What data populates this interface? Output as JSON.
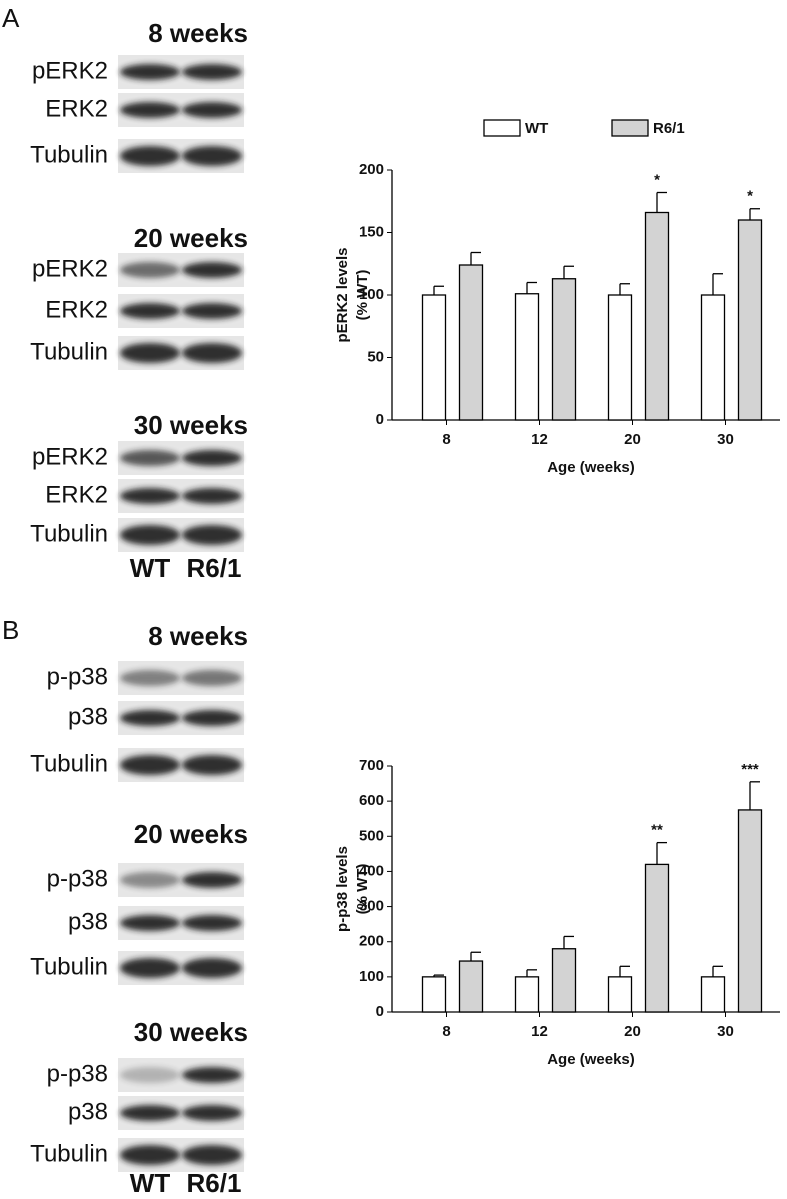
{
  "blots": [
    {
      "panel": "A",
      "lanes": [
        "WT",
        "R6/1"
      ],
      "groups": [
        {
          "title": "8 weeks",
          "rows": [
            "pERK2",
            "ERK2",
            "Tubulin"
          ]
        },
        {
          "title": "20 weeks",
          "rows": [
            "pERK2",
            "ERK2",
            "Tubulin"
          ]
        },
        {
          "title": "30 weeks",
          "rows": [
            "pERK2",
            "ERK2",
            "Tubulin"
          ]
        }
      ]
    },
    {
      "panel": "B",
      "lanes": [
        "WT",
        "R6/1"
      ],
      "groups": [
        {
          "title": "8 weeks",
          "rows": [
            "p-p38",
            "p38",
            "Tubulin"
          ]
        },
        {
          "title": "20 weeks",
          "rows": [
            "p-p38",
            "p38",
            "Tubulin"
          ]
        },
        {
          "title": "30 weeks",
          "rows": [
            "p-p38",
            "p38",
            "Tubulin"
          ]
        }
      ]
    }
  ],
  "chart_data": [
    {
      "type": "bar",
      "ylabel": [
        "pERK2 levels",
        "(% WT)"
      ],
      "xlabel": "Age (weeks)",
      "categories": [
        "8",
        "12",
        "20",
        "30"
      ],
      "series": [
        {
          "name": "WT",
          "color": "#ffffff",
          "values": [
            100,
            101,
            100,
            100
          ],
          "errors": [
            7,
            9,
            9,
            17
          ],
          "labels": [
            null,
            null,
            null,
            null
          ]
        },
        {
          "name": "R6/1",
          "color": "#d3d3d3",
          "values": [
            124,
            113,
            166,
            160
          ],
          "errors": [
            10,
            10,
            16,
            9
          ],
          "labels": [
            null,
            null,
            "*",
            "*"
          ]
        }
      ],
      "ylim": [
        0,
        200
      ],
      "yticks": [
        0,
        50,
        100,
        150,
        200
      ],
      "legend": "top"
    },
    {
      "type": "bar",
      "ylabel": [
        "p-p38 levels",
        "(% WT)"
      ],
      "xlabel": "Age (weeks)",
      "categories": [
        "8",
        "12",
        "20",
        "30"
      ],
      "series": [
        {
          "name": "WT",
          "color": "#ffffff",
          "values": [
            100,
            100,
            100,
            100
          ],
          "errors": [
            5,
            20,
            30,
            30
          ],
          "labels": [
            null,
            null,
            null,
            null
          ]
        },
        {
          "name": "R6/1",
          "color": "#d3d3d3",
          "values": [
            145,
            180,
            420,
            575
          ],
          "errors": [
            25,
            35,
            62,
            80
          ],
          "labels": [
            null,
            null,
            "**",
            "***"
          ]
        }
      ],
      "ylim": [
        0,
        700
      ],
      "yticks": [
        0,
        100,
        200,
        300,
        400,
        500,
        600,
        700
      ],
      "legend": false
    }
  ]
}
